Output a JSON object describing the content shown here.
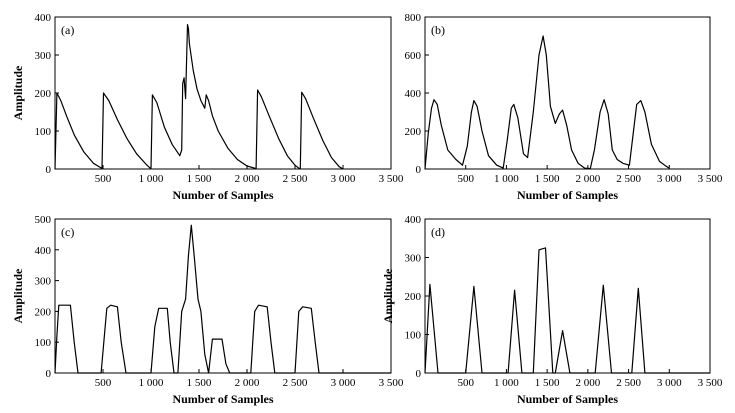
{
  "figure": {
    "x_axis_label": "Number of Samples",
    "y_axis_label": "Amplitude"
  },
  "chart_data": [
    {
      "type": "line",
      "panel_label": "(a)",
      "xlabel": "Number of Samples",
      "ylabel": "Amplitude",
      "xlim": [
        0,
        3500
      ],
      "ylim": [
        0,
        400
      ],
      "x_ticks": [
        500,
        1000,
        1500,
        2000,
        2500,
        3000,
        3500
      ],
      "x_tick_labels": [
        "500",
        "1 000",
        "1 500",
        "2 000",
        "2 500",
        "3 000",
        "3 500"
      ],
      "y_ticks": [
        0,
        100,
        200,
        300,
        400
      ],
      "y_tick_labels": [
        "0",
        "100",
        "200",
        "300",
        "400"
      ],
      "series": [
        {
          "x": [
            0,
            20,
            60,
            120,
            200,
            300,
            400,
            480,
            490,
            505,
            560,
            650,
            750,
            850,
            950,
            990,
            1000,
            1015,
            1060,
            1140,
            1220,
            1300,
            1320,
            1330,
            1345,
            1360,
            1380,
            1390,
            1400,
            1440,
            1480,
            1520,
            1560,
            1575,
            1600,
            1640,
            1700,
            1800,
            1900,
            2000,
            2080,
            2095,
            2110,
            2150,
            2230,
            2330,
            2420,
            2500,
            2540,
            2555,
            2570,
            2610,
            2690,
            2790,
            2880,
            2960,
            3000
          ],
          "values": [
            0,
            200,
            180,
            140,
            90,
            45,
            15,
            3,
            1,
            200,
            180,
            130,
            80,
            40,
            12,
            3,
            2,
            195,
            175,
            110,
            65,
            35,
            50,
            225,
            240,
            185,
            380,
            370,
            330,
            260,
            210,
            180,
            160,
            195,
            180,
            140,
            100,
            55,
            25,
            8,
            2,
            1,
            208,
            190,
            140,
            80,
            35,
            10,
            2,
            1,
            202,
            185,
            135,
            75,
            30,
            6,
            0
          ]
        }
      ]
    },
    {
      "type": "line",
      "panel_label": "(b)",
      "xlabel": "Number of Samples",
      "ylabel": "",
      "xlim": [
        0,
        3500
      ],
      "ylim": [
        0,
        800
      ],
      "x_ticks": [
        500,
        1000,
        1500,
        2000,
        2500,
        3000,
        3500
      ],
      "x_tick_labels": [
        "500",
        "1 000",
        "1 500",
        "2 000",
        "2 500",
        "3 000",
        "3 500"
      ],
      "y_ticks": [
        0,
        200,
        400,
        600,
        800
      ],
      "y_tick_labels": [
        "0",
        "200",
        "400",
        "600",
        "800"
      ],
      "series": [
        {
          "x": [
            0,
            40,
            80,
            110,
            150,
            200,
            280,
            380,
            460,
            520,
            570,
            600,
            640,
            700,
            780,
            880,
            960,
            1010,
            1060,
            1090,
            1140,
            1210,
            1260,
            1330,
            1400,
            1450,
            1490,
            1540,
            1600,
            1650,
            1690,
            1740,
            1800,
            1880,
            1960,
            2030,
            2080,
            2150,
            2200,
            2250,
            2300,
            2360,
            2430,
            2510,
            2560,
            2600,
            2650,
            2700,
            2780,
            2880,
            2960,
            3000
          ],
          "values": [
            0,
            190,
            320,
            365,
            340,
            230,
            100,
            50,
            20,
            120,
            300,
            360,
            330,
            200,
            70,
            20,
            5,
            150,
            320,
            340,
            270,
            80,
            60,
            300,
            600,
            700,
            600,
            330,
            240,
            290,
            310,
            230,
            100,
            30,
            5,
            2,
            100,
            300,
            365,
            290,
            100,
            50,
            30,
            20,
            200,
            340,
            360,
            300,
            130,
            40,
            15,
            5
          ]
        }
      ]
    },
    {
      "type": "line",
      "panel_label": "(c)",
      "xlabel": "Number of Samples",
      "ylabel": "Amplitude",
      "xlim": [
        0,
        3500
      ],
      "ylim": [
        0,
        500
      ],
      "x_ticks": [
        500,
        1000,
        1500,
        2000,
        2500,
        3000,
        3500
      ],
      "x_tick_labels": [
        "500",
        "1 000",
        "1 500",
        "2 000",
        "2 500",
        "3 000",
        "3 500"
      ],
      "y_ticks": [
        0,
        100,
        200,
        300,
        400,
        500
      ],
      "y_tick_labels": [
        "0",
        "100",
        "200",
        "300",
        "400",
        "500"
      ],
      "series": [
        {
          "x": [
            0,
            20,
            40,
            160,
            200,
            240,
            480,
            540,
            580,
            650,
            690,
            740,
            1000,
            1040,
            1080,
            1170,
            1200,
            1240,
            1280,
            1320,
            1360,
            1390,
            1420,
            1450,
            1490,
            1520,
            1560,
            1600,
            1640,
            1740,
            1780,
            1820,
            2040,
            2080,
            2120,
            2210,
            2250,
            2290,
            2500,
            2540,
            2580,
            2670,
            2710,
            2750,
            3500
          ],
          "values": [
            0,
            120,
            220,
            220,
            100,
            0,
            0,
            210,
            220,
            215,
            100,
            0,
            0,
            150,
            210,
            210,
            100,
            0,
            0,
            200,
            240,
            380,
            480,
            380,
            240,
            200,
            60,
            0,
            110,
            110,
            30,
            0,
            0,
            200,
            220,
            215,
            100,
            0,
            0,
            200,
            215,
            210,
            100,
            0,
            0
          ]
        }
      ]
    },
    {
      "type": "line",
      "panel_label": "(d)",
      "xlabel": "Number of Samples",
      "ylabel": "Amplitude",
      "xlim": [
        0,
        3500
      ],
      "ylim": [
        0,
        400
      ],
      "x_ticks": [
        500,
        1000,
        1500,
        2000,
        2500,
        3000,
        3500
      ],
      "x_tick_labels": [
        "500",
        "1 000",
        "1 500",
        "2 000",
        "2 500",
        "3 000",
        "3 500"
      ],
      "y_ticks": [
        0,
        100,
        200,
        300,
        400
      ],
      "y_tick_labels": [
        "0",
        "100",
        "200",
        "300",
        "400"
      ],
      "series": [
        {
          "x": [
            0,
            60,
            160,
            500,
            600,
            700,
            1020,
            1100,
            1190,
            1330,
            1400,
            1480,
            1570,
            1600,
            1690,
            1780,
            2090,
            2190,
            2290,
            2540,
            2620,
            2700,
            3500
          ],
          "values": [
            0,
            230,
            0,
            0,
            225,
            0,
            0,
            215,
            0,
            0,
            320,
            325,
            0,
            0,
            110,
            0,
            0,
            228,
            0,
            0,
            220,
            0,
            0
          ]
        }
      ]
    }
  ]
}
